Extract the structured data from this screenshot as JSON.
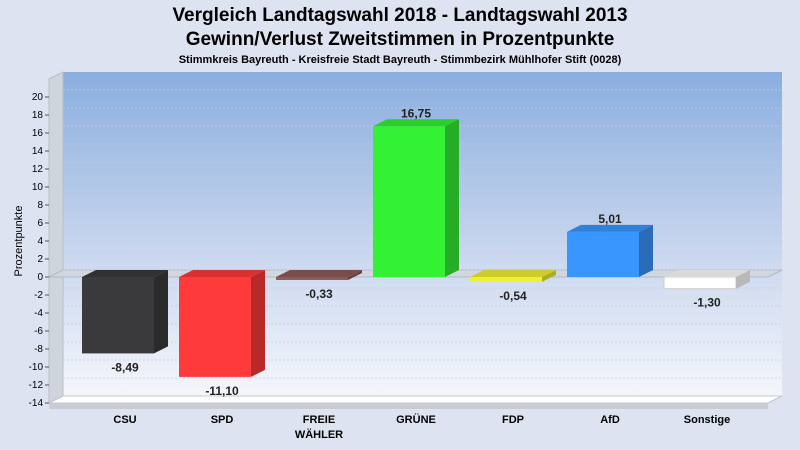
{
  "chart_data": {
    "type": "bar",
    "title_line1": "Vergleich Landtagswahl 2018 - Landtagswahl 2013",
    "title_line2": "Gewinn/Verlust Zweitstimmen in Prozentpunkte",
    "subtitle": "Stimmkreis Bayreuth - Kreisfreie Stadt Bayreuth - Stimmbezirk Mühlhofer Stift (0028)",
    "ylabel": "Prozentpunkte",
    "xlabel": "",
    "ylim": [
      -14,
      20
    ],
    "ytick_step": 2,
    "grid": true,
    "categories": [
      {
        "line1": "CSU",
        "line2": ""
      },
      {
        "line1": "SPD",
        "line2": ""
      },
      {
        "line1": "FREIE",
        "line2": "WÄHLER"
      },
      {
        "line1": "GRÜNE",
        "line2": ""
      },
      {
        "line1": "FDP",
        "line2": ""
      },
      {
        "line1": "AfD",
        "line2": ""
      },
      {
        "line1": "Sonstige",
        "line2": ""
      }
    ],
    "values": [
      -8.49,
      -11.1,
      -0.33,
      16.75,
      -0.54,
      5.01,
      -1.3
    ],
    "value_labels": [
      "-8,49",
      "-11,10",
      "-0,33",
      "16,75",
      "-0,54",
      "5,01",
      "-1,30"
    ],
    "colors": [
      "#3a3a3c",
      "#ff3a3a",
      "#8c5a5a",
      "#33f233",
      "#f0f033",
      "#3a96ff",
      "#ffffff"
    ]
  }
}
